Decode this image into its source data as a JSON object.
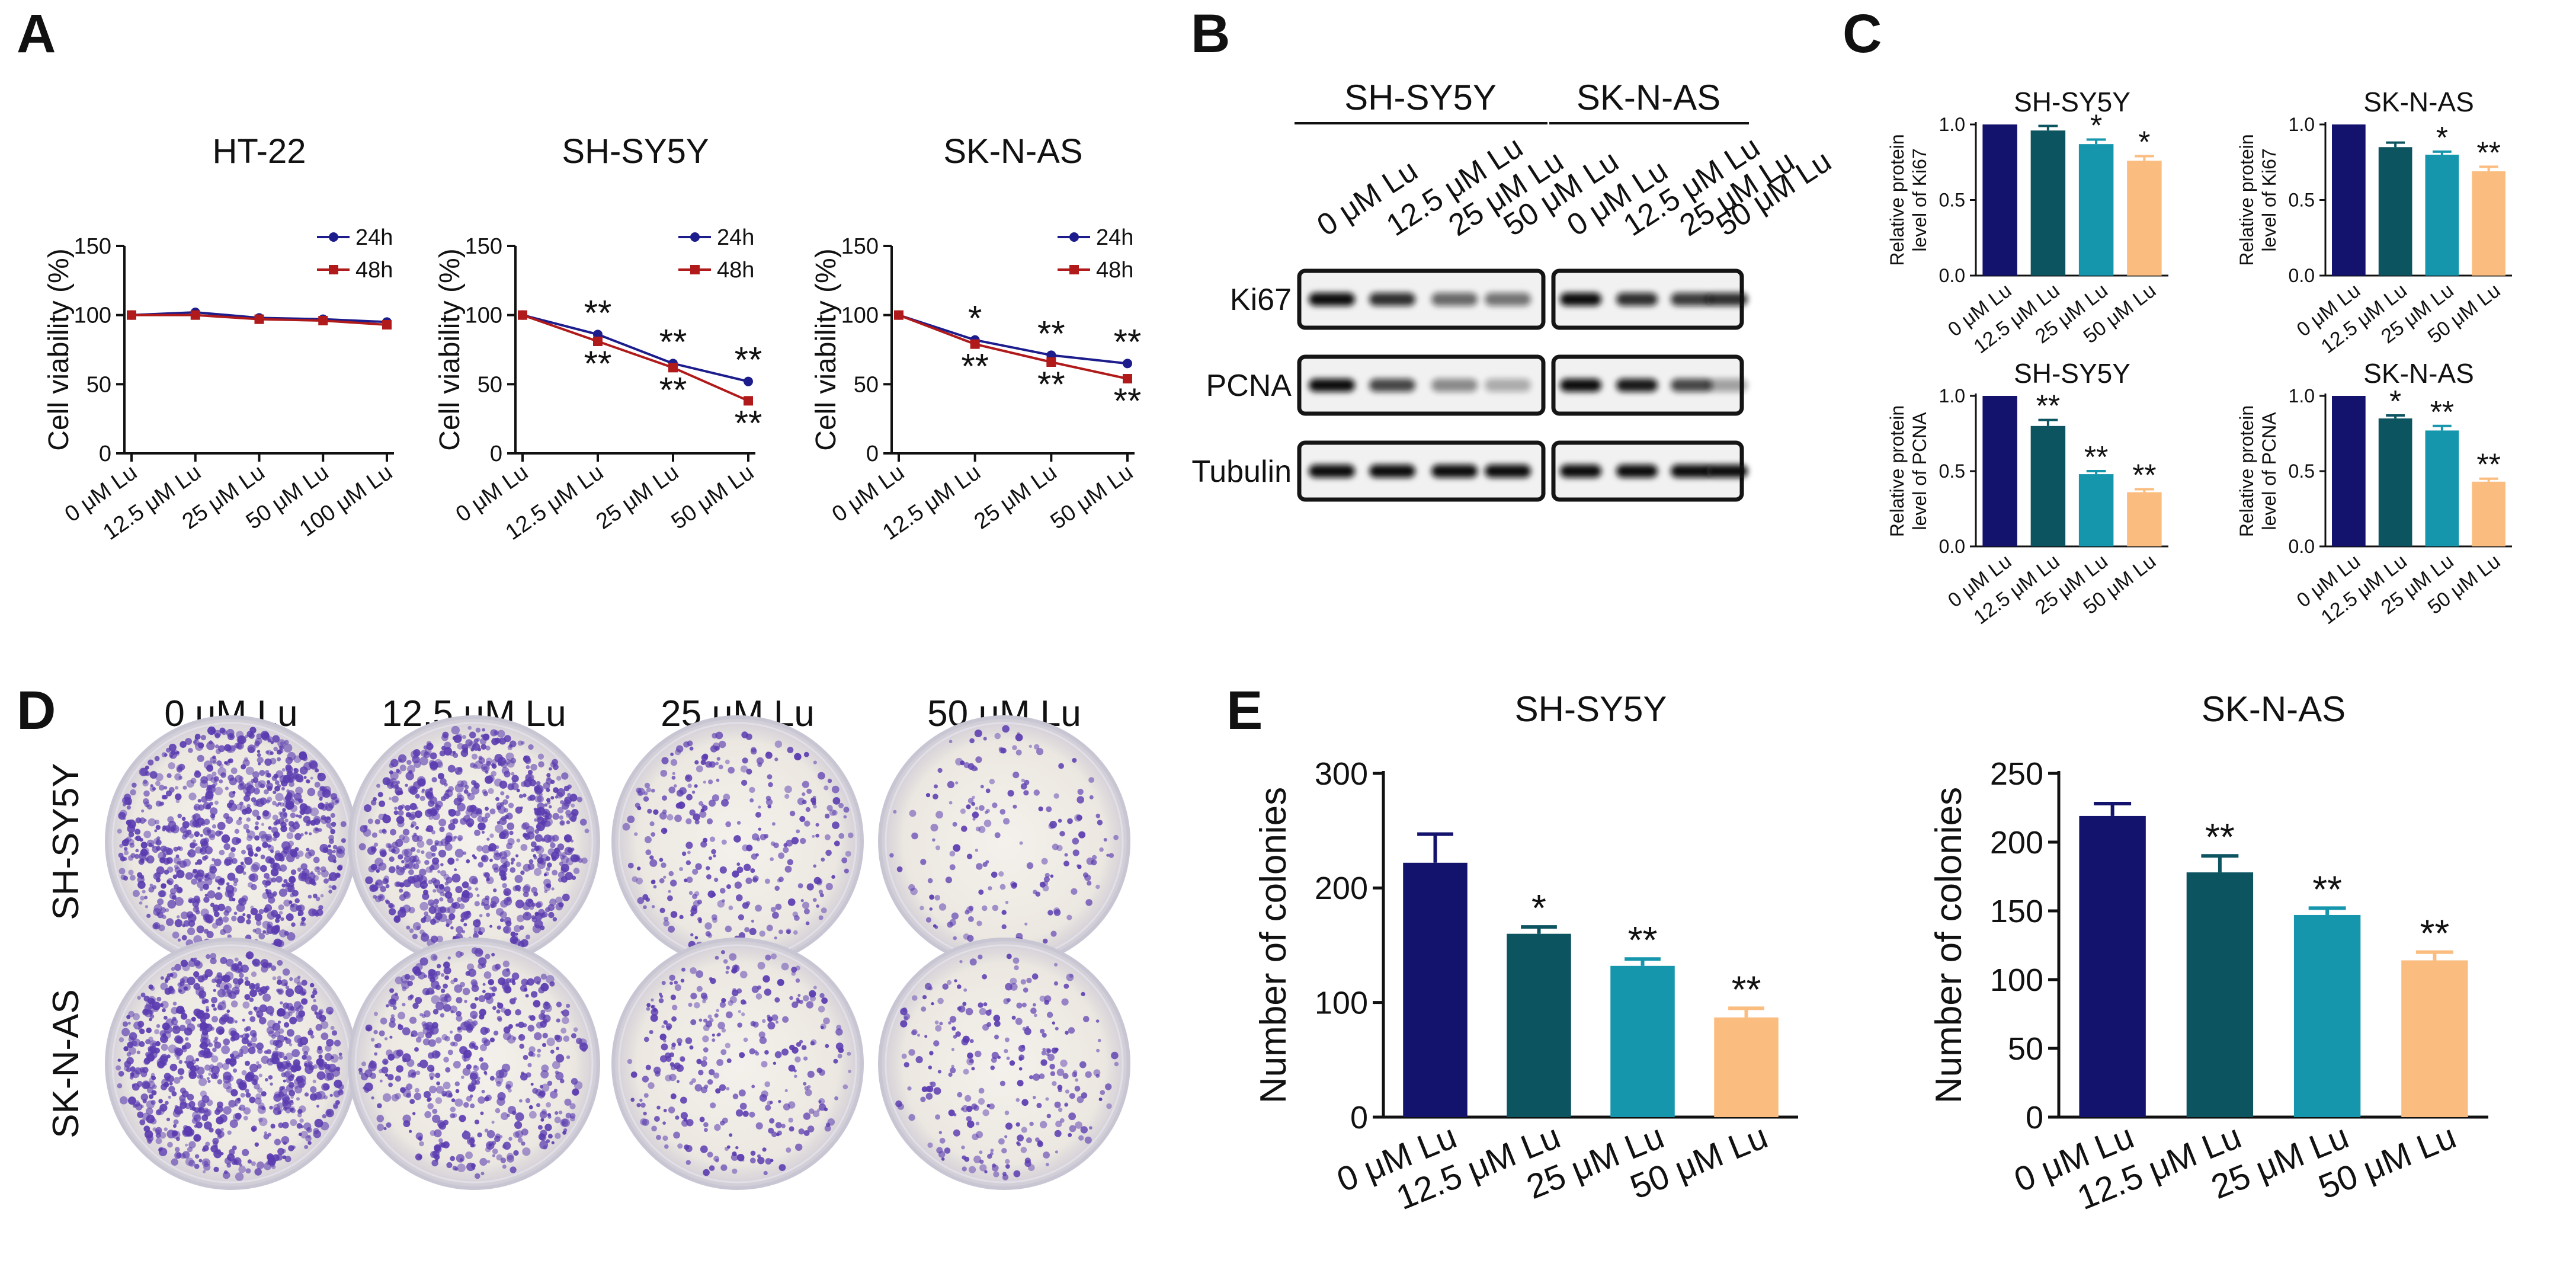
{
  "panel_letters": [
    "A",
    "B",
    "C",
    "D",
    "E"
  ],
  "colors": {
    "h24": "#1c1c8c",
    "h48": "#b01a1a",
    "bars": [
      "#13136e",
      "#0d5461",
      "#1596ad",
      "#fbbd7f"
    ]
  },
  "blot": {
    "groups": [
      "SH-SY5Y",
      "SK-N-AS"
    ],
    "lanes": [
      "0 μM Lu",
      "12.5 μM Lu",
      "25 μM Lu",
      "50 μM Lu"
    ],
    "rows": [
      "Ki67",
      "PCNA",
      "Tubulin"
    ],
    "intensity": {
      "Ki67": [
        [
          1.0,
          0.85,
          0.6,
          0.55
        ],
        [
          1.0,
          0.85,
          0.8,
          0.85
        ]
      ],
      "PCNA": [
        [
          1.0,
          0.75,
          0.45,
          0.3
        ],
        [
          1.0,
          0.95,
          0.75,
          0.35
        ]
      ],
      "Tubulin": [
        [
          1.0,
          1.0,
          1.0,
          1.0
        ],
        [
          1.0,
          1.0,
          1.0,
          1.0
        ]
      ]
    }
  },
  "colony": {
    "columns": [
      "0 μM Lu",
      "12.5 μM Lu",
      "25 μM Lu",
      "50 μM Lu"
    ],
    "rows": [
      "SH-SY5Y",
      "SK-N-AS"
    ],
    "density": [
      [
        1.0,
        0.9,
        0.35,
        0.2
      ],
      [
        0.95,
        0.6,
        0.35,
        0.3
      ]
    ]
  },
  "chart_data": [
    {
      "panel": "A",
      "type": "line",
      "title": "HT-22",
      "x": [
        "0 μM Lu",
        "12.5 μM Lu",
        "25 μM Lu",
        "50 μM Lu",
        "100 μM Lu"
      ],
      "ylabel": "Cell viability (%)",
      "ylim": [
        0,
        150
      ],
      "yticks": [
        0,
        50,
        100,
        150
      ],
      "series": [
        {
          "name": "24h",
          "values": [
            100,
            102,
            98,
            97,
            95
          ],
          "marks": [
            "",
            "",
            "",
            "",
            ""
          ]
        },
        {
          "name": "48h",
          "values": [
            100,
            100,
            97,
            96,
            93
          ],
          "marks": [
            "",
            "",
            "",
            "",
            ""
          ]
        }
      ]
    },
    {
      "panel": "A",
      "type": "line",
      "title": "SH-SY5Y",
      "x": [
        "0 μM Lu",
        "12.5 μM Lu",
        "25 μM Lu",
        "50 μM Lu"
      ],
      "ylabel": "Cell viability (%)",
      "ylim": [
        0,
        150
      ],
      "yticks": [
        0,
        50,
        100,
        150
      ],
      "series": [
        {
          "name": "24h",
          "values": [
            100,
            86,
            65,
            52
          ],
          "marks": [
            "",
            "**",
            "**",
            "**"
          ]
        },
        {
          "name": "48h",
          "values": [
            100,
            81,
            62,
            38
          ],
          "marks": [
            "",
            "**",
            "**",
            "**"
          ]
        }
      ]
    },
    {
      "panel": "A",
      "type": "line",
      "title": "SK-N-AS",
      "x": [
        "0 μM Lu",
        "12.5 μM Lu",
        "25 μM Lu",
        "50 μM Lu"
      ],
      "ylabel": "Cell viability (%)",
      "ylim": [
        0,
        150
      ],
      "yticks": [
        0,
        50,
        100,
        150
      ],
      "series": [
        {
          "name": "24h",
          "values": [
            100,
            82,
            71,
            65
          ],
          "marks": [
            "",
            "*",
            "**",
            "**"
          ]
        },
        {
          "name": "48h",
          "values": [
            100,
            79,
            66,
            54
          ],
          "marks": [
            "",
            "**",
            "**",
            "**"
          ]
        }
      ]
    },
    {
      "panel": "C",
      "type": "bar",
      "title": "SH-SY5Y",
      "categories": [
        "0 μM Lu",
        "12.5 μM Lu",
        "25 μM Lu",
        "50 μM Lu"
      ],
      "values": [
        1.0,
        0.96,
        0.87,
        0.76
      ],
      "errors": [
        0,
        0.03,
        0.03,
        0.03
      ],
      "marks": [
        "",
        "",
        "*",
        "*"
      ],
      "ylabel": [
        "Relative protein",
        "level of Ki67"
      ],
      "ylim": [
        0,
        1.0
      ],
      "yticks": [
        0.0,
        0.5,
        1.0
      ]
    },
    {
      "panel": "C",
      "type": "bar",
      "title": "SK-N-AS",
      "categories": [
        "0 μM Lu",
        "12.5 μM Lu",
        "25 μM Lu",
        "50 μM Lu"
      ],
      "values": [
        1.0,
        0.85,
        0.8,
        0.69
      ],
      "errors": [
        0,
        0.03,
        0.02,
        0.03
      ],
      "marks": [
        "",
        "",
        "*",
        "**"
      ],
      "ylabel": [
        "Relative protein",
        "level of Ki67"
      ],
      "ylim": [
        0,
        1.0
      ],
      "yticks": [
        0.0,
        0.5,
        1.0
      ]
    },
    {
      "panel": "C",
      "type": "bar",
      "title": "SH-SY5Y",
      "categories": [
        "0 μM Lu",
        "12.5 μM Lu",
        "25 μM Lu",
        "50 μM Lu"
      ],
      "values": [
        1.0,
        0.8,
        0.48,
        0.36
      ],
      "errors": [
        0,
        0.04,
        0.02,
        0.02
      ],
      "marks": [
        "",
        "**",
        "**",
        "**"
      ],
      "ylabel": [
        "Relative protein",
        "level of PCNA"
      ],
      "ylim": [
        0,
        1.0
      ],
      "yticks": [
        0.0,
        0.5,
        1.0
      ]
    },
    {
      "panel": "C",
      "type": "bar",
      "title": "SK-N-AS",
      "categories": [
        "0 μM Lu",
        "12.5 μM Lu",
        "25 μM Lu",
        "50 μM Lu"
      ],
      "values": [
        1.0,
        0.85,
        0.77,
        0.43
      ],
      "errors": [
        0,
        0.02,
        0.03,
        0.02
      ],
      "marks": [
        "",
        "*",
        "**",
        "**"
      ],
      "ylabel": [
        "Relative protein",
        "level of PCNA"
      ],
      "ylim": [
        0,
        1.0
      ],
      "yticks": [
        0.0,
        0.5,
        1.0
      ]
    },
    {
      "panel": "E",
      "type": "bar",
      "title": "SH-SY5Y",
      "categories": [
        "0 μM Lu",
        "12.5 μM Lu",
        "25 μM Lu",
        "50 μM Lu"
      ],
      "values": [
        222,
        160,
        132,
        87
      ],
      "errors": [
        25,
        6,
        6,
        8
      ],
      "marks": [
        "",
        "*",
        "**",
        "**"
      ],
      "ylabel": [
        "Number of colonies"
      ],
      "ylim": [
        0,
        300
      ],
      "yticks": [
        0,
        100,
        200,
        300
      ]
    },
    {
      "panel": "E",
      "type": "bar",
      "title": "SK-N-AS",
      "categories": [
        "0 μM Lu",
        "12.5 μM Lu",
        "25 μM Lu",
        "50 μM Lu"
      ],
      "values": [
        219,
        178,
        147,
        114
      ],
      "errors": [
        9,
        12,
        5,
        6
      ],
      "marks": [
        "",
        "**",
        "**",
        "**"
      ],
      "ylabel": [
        "Number of colonies"
      ],
      "ylim": [
        0,
        250
      ],
      "yticks": [
        0,
        50,
        100,
        150,
        200,
        250
      ]
    }
  ]
}
